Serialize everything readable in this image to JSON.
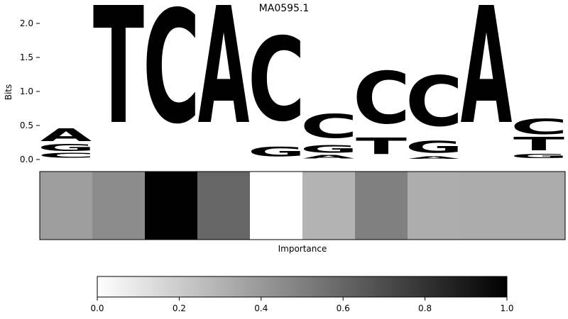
{
  "chart_data": [
    {
      "type": "sequence-logo",
      "title": "MA0595.1",
      "ylabel": "Bits",
      "ylim": [
        0,
        2.0
      ],
      "yticks": [
        "0.0",
        "0.5",
        "1.0",
        "1.5",
        "2.0"
      ],
      "colors": {
        "A": "#4aa34a",
        "C": "#4a4aff",
        "G": "#fbb83b",
        "T": "#ff4a4a"
      },
      "positions": [
        {
          "index": 1,
          "letters": [
            {
              "base": "C",
              "bits": 0.09
            },
            {
              "base": "G",
              "bits": 0.12
            },
            {
              "base": "A",
              "bits": 0.22
            }
          ]
        },
        {
          "index": 2,
          "letters": [
            {
              "base": "T",
              "bits": 2.0
            }
          ]
        },
        {
          "index": 3,
          "letters": [
            {
              "base": "C",
              "bits": 2.0
            }
          ]
        },
        {
          "index": 4,
          "letters": [
            {
              "base": "A",
              "bits": 2.0
            }
          ]
        },
        {
          "index": 5,
          "letters": [
            {
              "base": "G",
              "bits": 0.17
            },
            {
              "base": "C",
              "bits": 1.48
            }
          ]
        },
        {
          "index": 6,
          "letters": [
            {
              "base": "A",
              "bits": 0.06
            },
            {
              "base": "G",
              "bits": 0.14
            },
            {
              "base": "C",
              "bits": 0.42
            }
          ]
        },
        {
          "index": 7,
          "letters": [
            {
              "base": "T",
              "bits": 0.28
            },
            {
              "base": "C",
              "bits": 0.92
            }
          ]
        },
        {
          "index": 8,
          "letters": [
            {
              "base": "A",
              "bits": 0.04
            },
            {
              "base": "G",
              "bits": 0.21
            },
            {
              "base": "C",
              "bits": 0.89
            }
          ]
        },
        {
          "index": 9,
          "letters": [
            {
              "base": "A",
              "bits": 2.0
            }
          ]
        },
        {
          "index": 10,
          "letters": [
            {
              "base": "G",
              "bits": 0.07
            },
            {
              "base": "T",
              "bits": 0.23
            },
            {
              "base": "C",
              "bits": 0.27
            }
          ]
        }
      ]
    },
    {
      "type": "heatmap",
      "xlabel": "Importance",
      "values": [
        0.38,
        0.45,
        1.0,
        0.6,
        0.0,
        0.3,
        0.5,
        0.32,
        0.33,
        0.33
      ]
    },
    {
      "type": "colorbar",
      "range": [
        0,
        1
      ],
      "ticks": [
        "0.0",
        "0.2",
        "0.4",
        "0.6",
        "0.8",
        "1.0"
      ]
    }
  ]
}
